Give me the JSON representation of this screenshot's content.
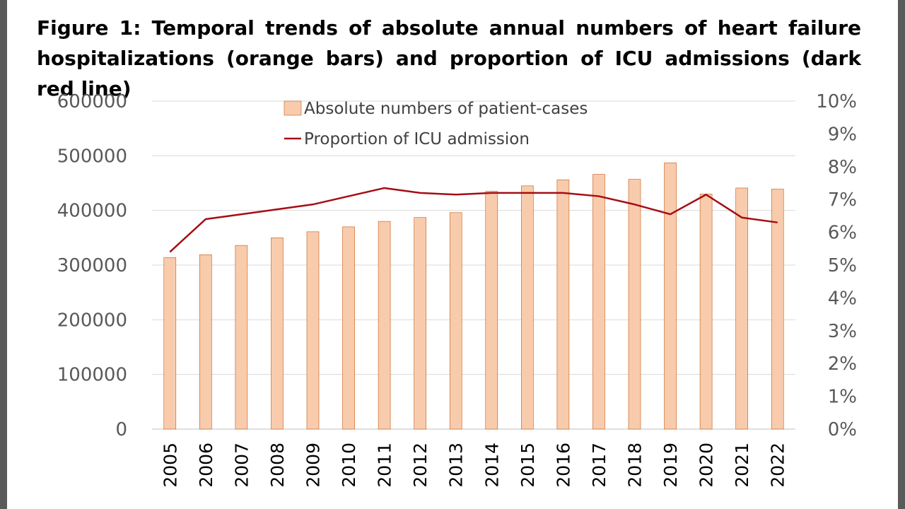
{
  "caption": "Figure 1: Temporal trends of absolute annual numbers of heart failure hospitalizations (orange bars) and proportion of ICU admissions (dark red line)",
  "colors": {
    "bar_fill": "#f8cbad",
    "bar_stroke": "#c55a11",
    "line": "#a50e14",
    "grid": "#d9d9d9",
    "tick_text": "#595959"
  },
  "chart_data": {
    "type": "bar",
    "categories": [
      "2005",
      "2006",
      "2007",
      "2008",
      "2009",
      "2010",
      "2011",
      "2012",
      "2013",
      "2014",
      "2015",
      "2016",
      "2017",
      "2018",
      "2019",
      "2020",
      "2021",
      "2022"
    ],
    "series": [
      {
        "name": "Absolute numbers of patient-cases",
        "type": "bar",
        "axis": "left",
        "values": [
          314000,
          319000,
          336000,
          350000,
          361000,
          370000,
          380000,
          387000,
          396000,
          435000,
          445000,
          456000,
          466000,
          457000,
          487000,
          430000,
          441000,
          439000
        ]
      },
      {
        "name": "Proportion of ICU admission",
        "type": "line",
        "axis": "right",
        "values": [
          5.4,
          6.4,
          6.55,
          6.7,
          6.85,
          7.1,
          7.35,
          7.2,
          7.15,
          7.2,
          7.2,
          7.2,
          7.1,
          6.85,
          6.55,
          7.15,
          6.45,
          6.3
        ]
      }
    ],
    "y_left": {
      "ylim": [
        0,
        600000
      ],
      "ticks": [
        "0",
        "100000",
        "200000",
        "300000",
        "400000",
        "500000",
        "600000"
      ]
    },
    "y_right": {
      "ylim": [
        0,
        10
      ],
      "ticks": [
        "0%",
        "1%",
        "2%",
        "3%",
        "4%",
        "5%",
        "6%",
        "7%",
        "8%",
        "9%",
        "10%"
      ]
    },
    "grid": true,
    "legend_position": "top-center"
  }
}
